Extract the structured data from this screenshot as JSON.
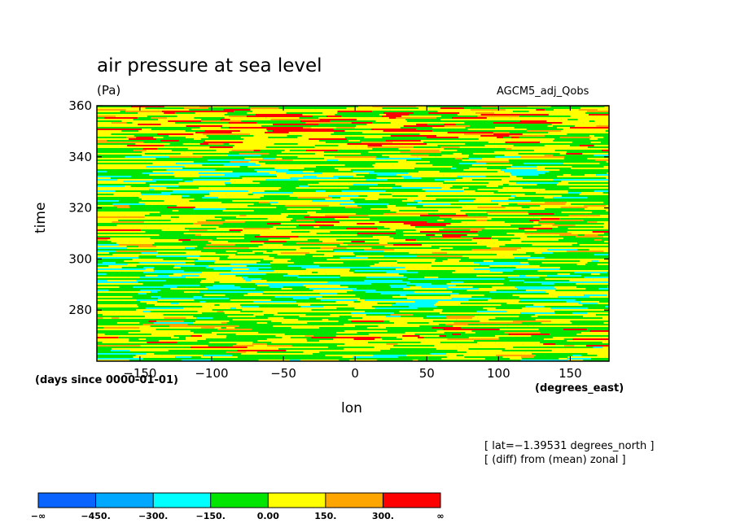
{
  "chart_data": {
    "type": "heatmap",
    "title": "air pressure at sea level",
    "units": "(Pa)",
    "model": "AGCM5_adj_Qobs",
    "xlabel": "lon",
    "xunits": "(degrees_east)",
    "ylabel": "time",
    "yunits": "(days since 0000-01-01)",
    "xlim": [
      -180,
      177
    ],
    "ylim": [
      260,
      360
    ],
    "x_ticks": [
      -150,
      -100,
      -50,
      0,
      50,
      100,
      150
    ],
    "y_ticks": [
      280,
      300,
      320,
      340,
      360
    ],
    "x_tick_labels": [
      "−150",
      "−100",
      "−50",
      "0",
      "50",
      "100",
      "150"
    ],
    "y_tick_labels": [
      "280",
      "300",
      "320",
      "340",
      "360"
    ],
    "notes": [
      "[ lat=−1.39531 degrees_north ]",
      "[ (diff) from (mean) zonal ]"
    ],
    "colorbar": {
      "levels": [
        "−∞",
        "−450.",
        "−300.",
        "−150.",
        "0.00",
        "150.",
        "300.",
        "∞"
      ],
      "colors": [
        "#0a64ff",
        "#00a8ff",
        "#00ffff",
        "#00e600",
        "#ffff00",
        "#ffa500",
        "#ff0000"
      ]
    },
    "dominant_bands": "fine horizontal streaks; mostly green (−150 to 0) and yellow (0 to 150), with scattered cyan, orange and rare red"
  }
}
